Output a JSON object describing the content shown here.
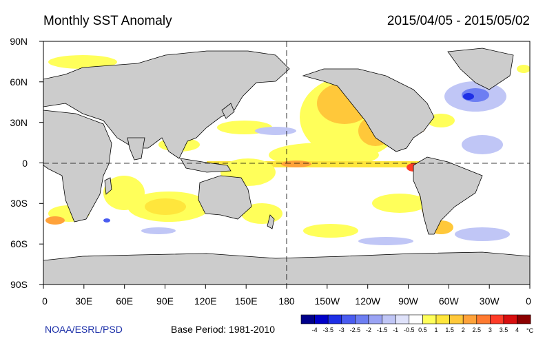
{
  "title_left": "Monthly SST Anomaly",
  "title_right": "2015/04/05 - 2015/05/02",
  "credit": "NOAA/ESRL/PSD",
  "base_period": "Base Period: 1981-2010",
  "y_ticks": [
    "90N",
    "60N",
    "30N",
    "0",
    "30S",
    "60S",
    "90S"
  ],
  "x_ticks": [
    "0",
    "30E",
    "60E",
    "90E",
    "120E",
    "150E",
    "180",
    "150W",
    "120W",
    "90W",
    "60W",
    "30W",
    "0"
  ],
  "colorbar": {
    "unit": "°C",
    "labels": [
      "-4",
      "-3.5",
      "-3",
      "-2.5",
      "-2",
      "-1.5",
      "-1",
      "-0.5",
      "0.5",
      "1",
      "1.5",
      "2",
      "2.5",
      "3",
      "3.5",
      "4"
    ],
    "colors": [
      "#00008a",
      "#0000c8",
      "#1e2fe6",
      "#4a5cf0",
      "#6d7ef2",
      "#9aa3f4",
      "#c0c6f6",
      "#dfe2fa",
      "#ffffff",
      "#ffff5a",
      "#ffe63c",
      "#ffc83a",
      "#ffa23a",
      "#ff7a30",
      "#ff3c28",
      "#d80f0f",
      "#8c0000"
    ]
  },
  "colors": {
    "land": "#cccccc",
    "ocean": "#ffffff",
    "credit_blue": "#1c2fa8"
  }
}
